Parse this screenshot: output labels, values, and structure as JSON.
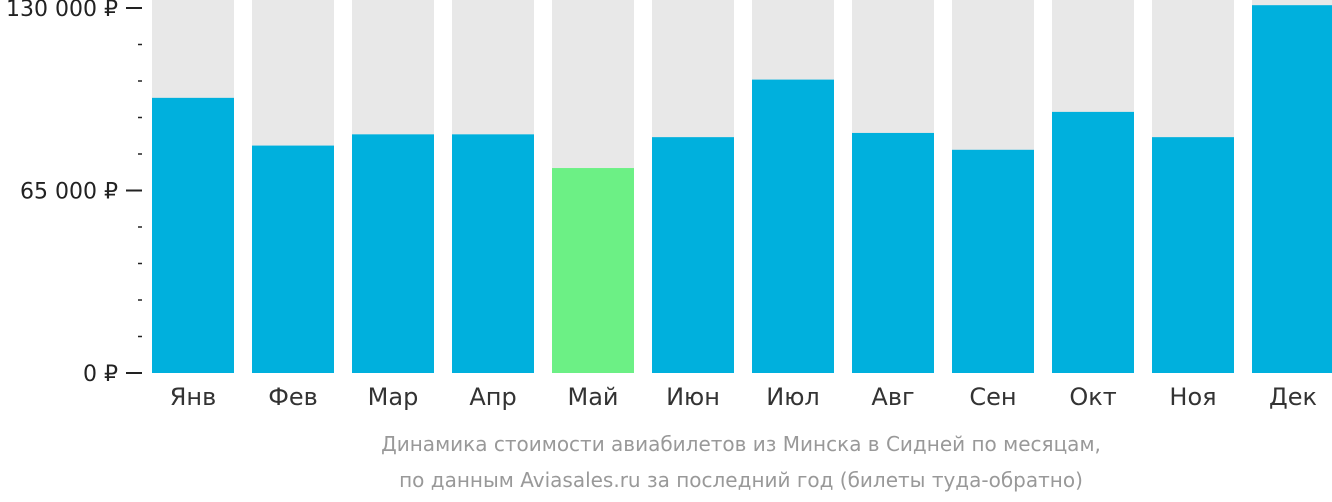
{
  "chart_data": {
    "type": "bar",
    "categories": [
      "Янв",
      "Фев",
      "Мар",
      "Апр",
      "Май",
      "Июн",
      "Июл",
      "Авг",
      "Сен",
      "Окт",
      "Ноя",
      "Дек"
    ],
    "values": [
      98000,
      81000,
      85000,
      85000,
      73000,
      84000,
      104500,
      85500,
      79500,
      93000,
      84000,
      131000
    ],
    "highlight_index": 4,
    "ylim": [
      0,
      130000
    ],
    "major_ticks": [
      {
        "value": 0,
        "label": "0 ₽"
      },
      {
        "value": 65000,
        "label": "65 000 ₽"
      },
      {
        "value": 130000,
        "label": "130 000 ₽"
      }
    ],
    "minor_tick_step": 13000,
    "xlabel": "",
    "ylabel": "",
    "caption": [
      "Динамика стоимости авиабилетов из Минска в Сидней по месяцам,",
      "по данным Aviasales.ru за последний год (билеты туда-обратно)"
    ],
    "colors": {
      "bar": "#00b0dd",
      "bar_highlight": "#6cf085",
      "bar_background": "#e8e8e8",
      "tick": "#222222",
      "caption": "#999999"
    }
  }
}
